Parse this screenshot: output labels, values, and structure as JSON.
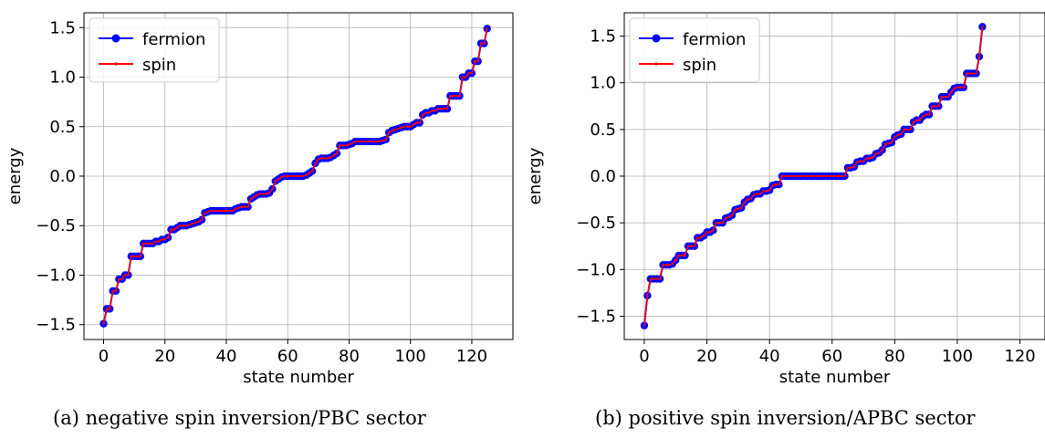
{
  "figure": {
    "legend_labels": {
      "fermion": "fermion",
      "spin": "spin"
    },
    "series_colors": {
      "fermion": "#0000ff",
      "spin": "#ff0000"
    }
  },
  "panels": [
    {
      "caption": "(a) negative spin inversion/PBC sector"
    },
    {
      "caption": "(b) positive spin inversion/APBC sector"
    }
  ],
  "chart_data": [
    {
      "type": "line",
      "title": "",
      "xlabel": "state number",
      "ylabel": "energy",
      "xlim": [
        -6.4,
        133.4
      ],
      "ylim": [
        -1.65,
        1.65
      ],
      "xticks": [
        0,
        20,
        40,
        60,
        80,
        100,
        120
      ],
      "xtick_labels": [
        "0",
        "20",
        "40",
        "60",
        "80",
        "100",
        "120"
      ],
      "yticks": [
        -1.5,
        -1.0,
        -0.5,
        0.0,
        0.5,
        1.0,
        1.5
      ],
      "ytick_labels": [
        "−1.5",
        "−1.0",
        "−0.5",
        "0.0",
        "0.5",
        "1.0",
        "1.5"
      ],
      "grid": true,
      "legend": "upper-left",
      "levels": [
        [
          0,
          -1.49
        ],
        [
          1,
          -1.34
        ],
        [
          2,
          -1.34
        ],
        [
          3,
          -1.16
        ],
        [
          4,
          -1.16
        ],
        [
          5,
          -1.04
        ],
        [
          6,
          -1.04
        ],
        [
          7,
          -1.0
        ],
        [
          8,
          -1.0
        ],
        [
          9,
          -0.81
        ],
        [
          10,
          -0.81
        ],
        [
          11,
          -0.81
        ],
        [
          12,
          -0.81
        ],
        [
          13,
          -0.68
        ],
        [
          14,
          -0.68
        ],
        [
          15,
          -0.68
        ],
        [
          16,
          -0.68
        ],
        [
          17,
          -0.66
        ],
        [
          18,
          -0.66
        ],
        [
          19,
          -0.64
        ],
        [
          20,
          -0.64
        ],
        [
          21,
          -0.62
        ],
        [
          22,
          -0.54
        ],
        [
          23,
          -0.54
        ],
        [
          24,
          -0.52
        ],
        [
          25,
          -0.5
        ],
        [
          26,
          -0.5
        ],
        [
          27,
          -0.5
        ],
        [
          28,
          -0.49
        ],
        [
          29,
          -0.48
        ],
        [
          30,
          -0.47
        ],
        [
          31,
          -0.46
        ],
        [
          32,
          -0.44
        ],
        [
          33,
          -0.37
        ],
        [
          34,
          -0.36
        ],
        [
          35,
          -0.35
        ],
        [
          36,
          -0.35
        ],
        [
          37,
          -0.35
        ],
        [
          38,
          -0.35
        ],
        [
          39,
          -0.35
        ],
        [
          40,
          -0.35
        ],
        [
          41,
          -0.35
        ],
        [
          42,
          -0.35
        ],
        [
          43,
          -0.33
        ],
        [
          44,
          -0.32
        ],
        [
          45,
          -0.31
        ],
        [
          46,
          -0.31
        ],
        [
          47,
          -0.31
        ],
        [
          48,
          -0.23
        ],
        [
          49,
          -0.21
        ],
        [
          50,
          -0.19
        ],
        [
          51,
          -0.18
        ],
        [
          52,
          -0.18
        ],
        [
          53,
          -0.18
        ],
        [
          54,
          -0.17
        ],
        [
          55,
          -0.13
        ],
        [
          56,
          -0.05
        ],
        [
          57,
          -0.03
        ],
        [
          58,
          -0.01
        ],
        [
          59,
          0.0
        ],
        [
          60,
          0.0
        ],
        [
          61,
          0.0
        ],
        [
          62,
          0.0
        ],
        [
          63,
          0.0
        ],
        [
          64,
          0.0
        ],
        [
          65,
          0.0
        ],
        [
          66,
          0.01
        ],
        [
          67,
          0.03
        ],
        [
          68,
          0.05
        ],
        [
          69,
          0.13
        ],
        [
          70,
          0.17
        ],
        [
          71,
          0.18
        ],
        [
          72,
          0.18
        ],
        [
          73,
          0.18
        ],
        [
          74,
          0.19
        ],
        [
          75,
          0.21
        ],
        [
          76,
          0.23
        ],
        [
          77,
          0.31
        ],
        [
          78,
          0.31
        ],
        [
          79,
          0.31
        ],
        [
          80,
          0.32
        ],
        [
          81,
          0.33
        ],
        [
          82,
          0.35
        ],
        [
          83,
          0.35
        ],
        [
          84,
          0.35
        ],
        [
          85,
          0.35
        ],
        [
          86,
          0.35
        ],
        [
          87,
          0.35
        ],
        [
          88,
          0.35
        ],
        [
          89,
          0.35
        ],
        [
          90,
          0.35
        ],
        [
          91,
          0.36
        ],
        [
          92,
          0.37
        ],
        [
          93,
          0.44
        ],
        [
          94,
          0.46
        ],
        [
          95,
          0.47
        ],
        [
          96,
          0.48
        ],
        [
          97,
          0.49
        ],
        [
          98,
          0.5
        ],
        [
          99,
          0.5
        ],
        [
          100,
          0.5
        ],
        [
          101,
          0.52
        ],
        [
          102,
          0.54
        ],
        [
          103,
          0.54
        ],
        [
          104,
          0.62
        ],
        [
          105,
          0.64
        ],
        [
          106,
          0.64
        ],
        [
          107,
          0.66
        ],
        [
          108,
          0.66
        ],
        [
          109,
          0.68
        ],
        [
          110,
          0.68
        ],
        [
          111,
          0.68
        ],
        [
          112,
          0.68
        ],
        [
          113,
          0.81
        ],
        [
          114,
          0.81
        ],
        [
          115,
          0.81
        ],
        [
          116,
          0.81
        ],
        [
          117,
          1.0
        ],
        [
          118,
          1.0
        ],
        [
          119,
          1.04
        ],
        [
          120,
          1.04
        ],
        [
          121,
          1.16
        ],
        [
          122,
          1.16
        ],
        [
          123,
          1.34
        ],
        [
          124,
          1.34
        ],
        [
          125,
          1.49
        ]
      ]
    },
    {
      "type": "line",
      "title": "",
      "xlabel": "state number",
      "ylabel": "energy",
      "xlim": [
        -6.4,
        128
      ],
      "ylim": [
        -1.75,
        1.75
      ],
      "xticks": [
        0,
        20,
        40,
        60,
        80,
        100,
        120
      ],
      "xtick_labels": [
        "0",
        "20",
        "40",
        "60",
        "80",
        "100",
        "120"
      ],
      "yticks": [
        -1.5,
        -1.0,
        -0.5,
        0.0,
        0.5,
        1.0,
        1.5
      ],
      "ytick_labels": [
        "−1.5",
        "−1.0",
        "−0.5",
        "0.0",
        "0.5",
        "1.0",
        "1.5"
      ],
      "grid": true,
      "legend": "upper-left",
      "levels": [
        [
          0,
          -1.6
        ],
        [
          1,
          -1.28
        ],
        [
          2,
          -1.1
        ],
        [
          3,
          -1.1
        ],
        [
          4,
          -1.1
        ],
        [
          5,
          -1.1
        ],
        [
          6,
          -0.95
        ],
        [
          7,
          -0.95
        ],
        [
          8,
          -0.95
        ],
        [
          9,
          -0.94
        ],
        [
          10,
          -0.9
        ],
        [
          11,
          -0.85
        ],
        [
          12,
          -0.85
        ],
        [
          13,
          -0.85
        ],
        [
          14,
          -0.75
        ],
        [
          15,
          -0.75
        ],
        [
          16,
          -0.75
        ],
        [
          17,
          -0.66
        ],
        [
          18,
          -0.66
        ],
        [
          19,
          -0.64
        ],
        [
          20,
          -0.6
        ],
        [
          21,
          -0.6
        ],
        [
          22,
          -0.58
        ],
        [
          23,
          -0.5
        ],
        [
          24,
          -0.5
        ],
        [
          25,
          -0.5
        ],
        [
          26,
          -0.45
        ],
        [
          27,
          -0.44
        ],
        [
          28,
          -0.42
        ],
        [
          29,
          -0.36
        ],
        [
          30,
          -0.35
        ],
        [
          31,
          -0.34
        ],
        [
          32,
          -0.28
        ],
        [
          33,
          -0.25
        ],
        [
          34,
          -0.24
        ],
        [
          35,
          -0.2
        ],
        [
          36,
          -0.19
        ],
        [
          37,
          -0.19
        ],
        [
          38,
          -0.16
        ],
        [
          39,
          -0.16
        ],
        [
          40,
          -0.15
        ],
        [
          41,
          -0.1
        ],
        [
          42,
          -0.09
        ],
        [
          43,
          -0.09
        ],
        [
          44,
          0.0
        ],
        [
          45,
          0.0
        ],
        [
          46,
          0.0
        ],
        [
          47,
          0.0
        ],
        [
          48,
          0.0
        ],
        [
          49,
          0.0
        ],
        [
          50,
          0.0
        ],
        [
          51,
          0.0
        ],
        [
          52,
          0.0
        ],
        [
          53,
          0.0
        ],
        [
          54,
          0.0
        ],
        [
          55,
          0.0
        ],
        [
          56,
          0.0
        ],
        [
          57,
          0.0
        ],
        [
          58,
          0.0
        ],
        [
          59,
          0.0
        ],
        [
          60,
          0.0
        ],
        [
          61,
          0.0
        ],
        [
          62,
          0.0
        ],
        [
          63,
          0.0
        ],
        [
          64,
          0.0
        ],
        [
          65,
          0.09
        ],
        [
          66,
          0.09
        ],
        [
          67,
          0.1
        ],
        [
          68,
          0.15
        ],
        [
          69,
          0.16
        ],
        [
          70,
          0.16
        ],
        [
          71,
          0.19
        ],
        [
          72,
          0.19
        ],
        [
          73,
          0.2
        ],
        [
          74,
          0.24
        ],
        [
          75,
          0.25
        ],
        [
          76,
          0.28
        ],
        [
          77,
          0.34
        ],
        [
          78,
          0.35
        ],
        [
          79,
          0.36
        ],
        [
          80,
          0.42
        ],
        [
          81,
          0.44
        ],
        [
          82,
          0.45
        ],
        [
          83,
          0.5
        ],
        [
          84,
          0.5
        ],
        [
          85,
          0.5
        ],
        [
          86,
          0.58
        ],
        [
          87,
          0.6
        ],
        [
          88,
          0.6
        ],
        [
          89,
          0.64
        ],
        [
          90,
          0.66
        ],
        [
          91,
          0.66
        ],
        [
          92,
          0.75
        ],
        [
          93,
          0.75
        ],
        [
          94,
          0.75
        ],
        [
          95,
          0.85
        ],
        [
          96,
          0.85
        ],
        [
          97,
          0.85
        ],
        [
          98,
          0.9
        ],
        [
          99,
          0.94
        ],
        [
          100,
          0.95
        ],
        [
          101,
          0.95
        ],
        [
          102,
          0.95
        ],
        [
          103,
          1.1
        ],
        [
          104,
          1.1
        ],
        [
          105,
          1.1
        ],
        [
          106,
          1.1
        ],
        [
          107,
          1.28
        ],
        [
          108,
          1.6
        ]
      ]
    }
  ]
}
